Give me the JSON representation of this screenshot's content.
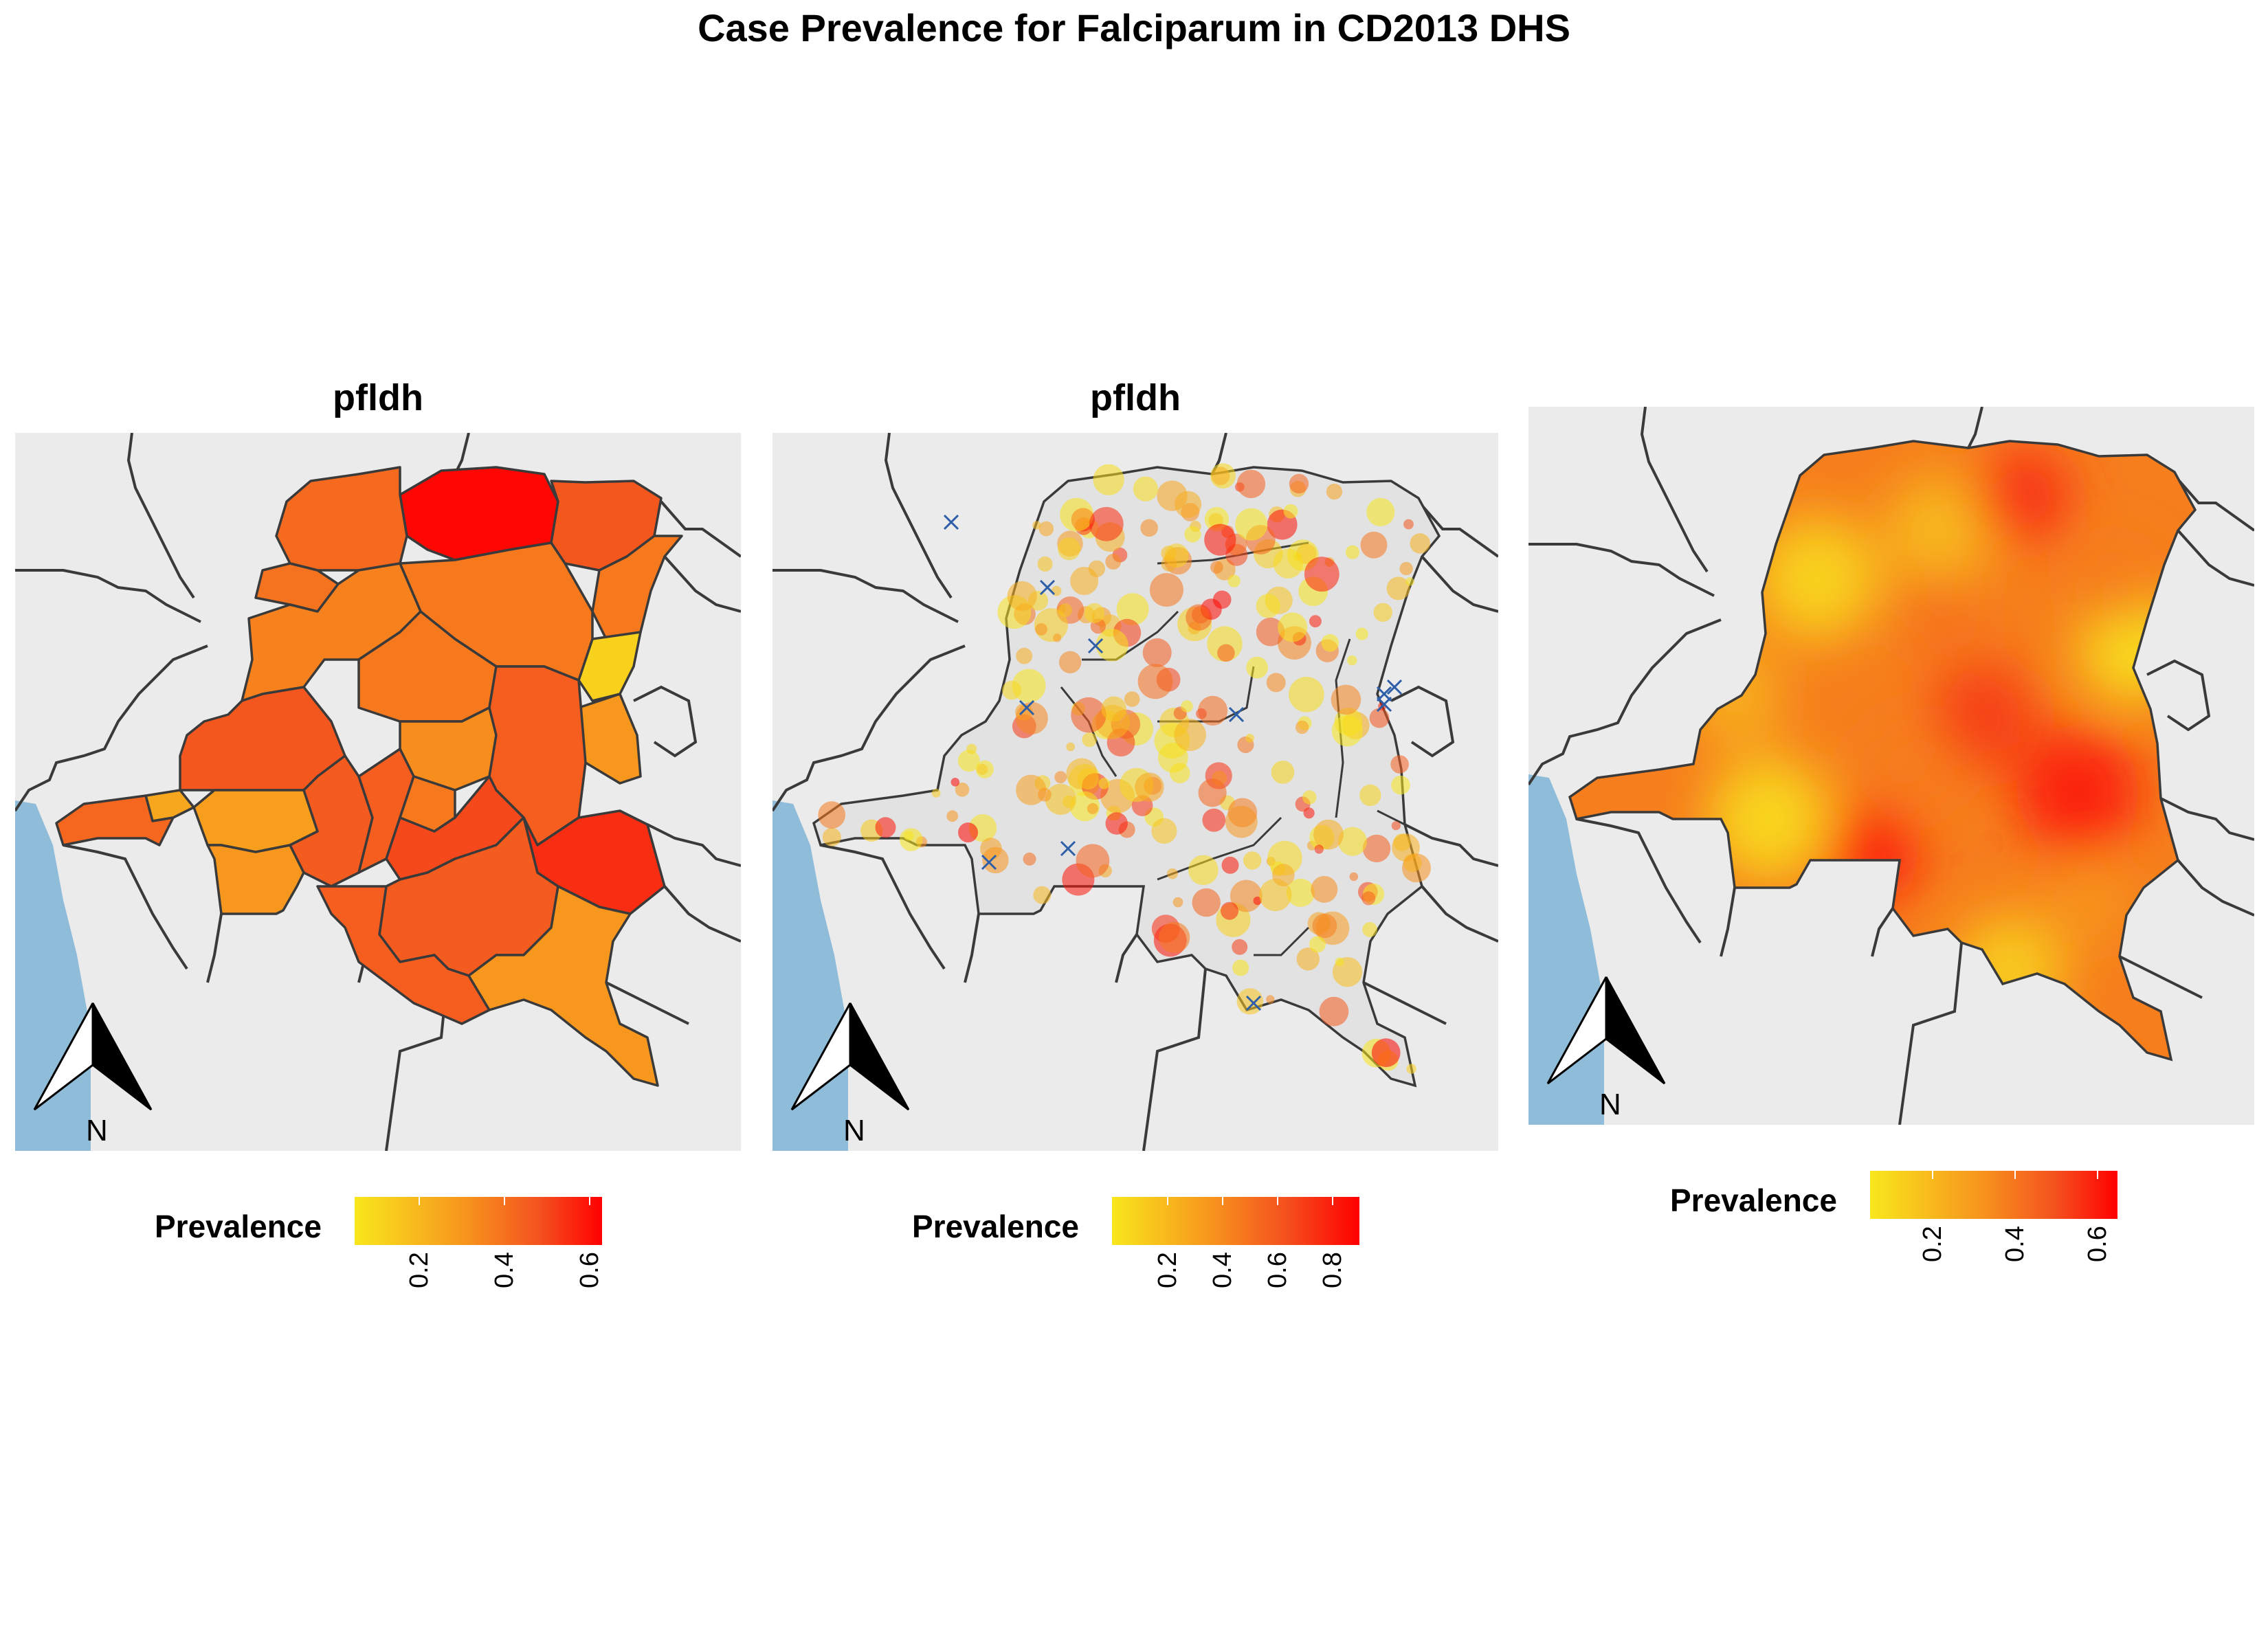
{
  "title": "Case Prevalence for Falciparum in CD2013 DHS",
  "colors": {
    "low": "#f8e71c",
    "mid": "#f7941d",
    "high": "#ff0000",
    "ocean": "#8fbcd8",
    "background": "#ebebeb",
    "border": "#3a3a3a",
    "site_marker": "#2d5fa8"
  },
  "north_arrow": {
    "label": "N"
  },
  "panels": [
    {
      "title": "pfldh",
      "type": "choropleth",
      "legend": {
        "title": "Prevalence",
        "ticks": [
          "0.2",
          "0.4",
          "0.6"
        ],
        "range": [
          0.05,
          0.63
        ]
      }
    },
    {
      "title": "pfldh",
      "type": "point-map",
      "legend": {
        "title": "Prevalence",
        "ticks": [
          "0.2",
          "0.4",
          "0.6",
          "0.8"
        ],
        "range": [
          0.0,
          0.9
        ]
      }
    },
    {
      "title": "",
      "type": "surface",
      "legend": {
        "title": "Prevalence",
        "ticks": [
          "0.2",
          "0.4",
          "0.6"
        ],
        "range": [
          0.05,
          0.65
        ]
      }
    }
  ],
  "chart_data": [
    {
      "type": "choropleth",
      "title": "pfldh",
      "legend_title": "Prevalence",
      "regions": [
        {
          "id": "nord-ubangi-bas-uele-north",
          "value": 0.62
        },
        {
          "id": "haut-uele",
          "value": 0.47
        },
        {
          "id": "ituri",
          "value": 0.38
        },
        {
          "id": "nord-kivu",
          "value": 0.12
        },
        {
          "id": "sud-kivu",
          "value": 0.3
        },
        {
          "id": "tshopo",
          "value": 0.38
        },
        {
          "id": "mongala",
          "value": 0.42
        },
        {
          "id": "sud-ubangi",
          "value": 0.4
        },
        {
          "id": "equateur",
          "value": 0.36
        },
        {
          "id": "tshuapa",
          "value": 0.38
        },
        {
          "id": "mai-ndombe",
          "value": 0.47
        },
        {
          "id": "kinshasa",
          "value": 0.25
        },
        {
          "id": "kongo-central",
          "value": 0.43
        },
        {
          "id": "kwilu",
          "value": 0.28
        },
        {
          "id": "kwango",
          "value": 0.3
        },
        {
          "id": "sankuru",
          "value": 0.33
        },
        {
          "id": "maniema",
          "value": 0.45
        },
        {
          "id": "kasai",
          "value": 0.46
        },
        {
          "id": "kasai-central",
          "value": 0.45
        },
        {
          "id": "kasai-oriental",
          "value": 0.38
        },
        {
          "id": "lomami",
          "value": 0.5
        },
        {
          "id": "tanganyika",
          "value": 0.55
        },
        {
          "id": "haut-lomami",
          "value": 0.46
        },
        {
          "id": "lualaba",
          "value": 0.45
        },
        {
          "id": "haut-katanga",
          "value": 0.3
        }
      ]
    },
    {
      "type": "scatter",
      "title": "pfldh",
      "legend_title": "Prevalence",
      "note": "survey cluster points sized and colored by prevalence; blue x marks clusters with zero cases",
      "prevalence_range": [
        0.0,
        0.9
      ]
    },
    {
      "type": "heatmap",
      "legend_title": "Prevalence",
      "prevalence_range": [
        0.05,
        0.65
      ]
    }
  ]
}
